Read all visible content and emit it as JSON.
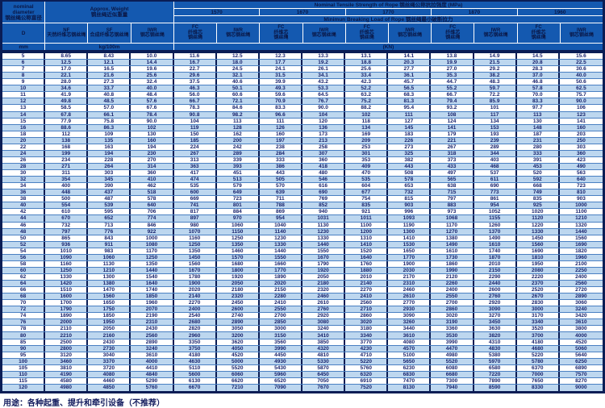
{
  "header": {
    "diameter_title": "nominal\ndiameter\n钢丝绳公称直径",
    "weight_title": "Approx. Weight\n钢丝绳近似重量",
    "tensile_title": "Nominal  Tensile  Strength  of  Rope  钢丝绳公称抗拉强度  (MPa)",
    "breaking_title": "Minimun  Breaking  Load  of  Rope  钢丝绳最小破断拉力",
    "strengths": [
      "1570",
      "1670",
      "1770",
      "1870",
      "1960"
    ],
    "col_d": "D",
    "col_nf": "NF\n天然纤维芯钢丝绳",
    "col_sf": "SF\n合成纤维芯钢丝绳",
    "col_iwr": "IWR\n钢芯钢丝绳",
    "col_fc_core": "FC\n纤维芯\n钢丝绳",
    "col_iwr_core": "IWR\n钢芯钢丝绳",
    "unit_mm": "mm",
    "unit_kg": "kg/100m",
    "unit_kn": "(KN)"
  },
  "columns": [
    "D mm",
    "NF kg/100m",
    "SF kg/100m",
    "IWR kg/100m",
    "FC 1570",
    "IWR 1570",
    "FC 1670",
    "IWR 1670",
    "FC 1770",
    "IWR 1770",
    "FC 1870",
    "IWR 1870",
    "FC 1960",
    "IWR 1960"
  ],
  "rows": [
    [
      "5",
      "8.65",
      "8.43",
      "10.0",
      "11.6",
      "12.5",
      "12.3",
      "13.3",
      "13.1",
      "14.1",
      "13.8",
      "14.9",
      "14.5",
      "15.6"
    ],
    [
      "6",
      "12.5",
      "12.1",
      "14.4",
      "16.7",
      "18.0",
      "17.7",
      "19.2",
      "18.8",
      "20.3",
      "19.9",
      "21.5",
      "20.8",
      "22.5"
    ],
    [
      "7",
      "17.0",
      "16.5",
      "19.6",
      "22.7",
      "24.5",
      "24.1",
      "26.1",
      "25.6",
      "27.7",
      "27.0",
      "29.2",
      "28.3",
      "30.6"
    ],
    [
      "8",
      "22.1",
      "21.6",
      "25.6",
      "29.6",
      "32.1",
      "31.5",
      "34.1",
      "33.4",
      "36.1",
      "35.3",
      "38.2",
      "37.0",
      "40.0"
    ],
    [
      "9",
      "28.0",
      "27.3",
      "32.4",
      "37.5",
      "40.6",
      "39.9",
      "43.2",
      "42.3",
      "45.7",
      "44.7",
      "48.3",
      "46.8",
      "50.6"
    ],
    [
      "10",
      "34.6",
      "33.7",
      "40.0",
      "46.3",
      "50.1",
      "49.3",
      "53.3",
      "52.2",
      "56.5",
      "55.2",
      "59.7",
      "57.8",
      "62.5"
    ],
    [
      "11",
      "41.9",
      "40.8",
      "48.4",
      "56.0",
      "60.6",
      "59.6",
      "64.5",
      "63.2",
      "68.3",
      "66.7",
      "72.2",
      "70.0",
      "75.7"
    ],
    [
      "12",
      "49.8",
      "48.5",
      "57.6",
      "66.7",
      "72.1",
      "70.9",
      "76.7",
      "75.2",
      "81.3",
      "79.4",
      "85.9",
      "83.3",
      "90.0"
    ],
    [
      "13",
      "58.5",
      "57.0",
      "67.6",
      "78.3",
      "84.6",
      "83.3",
      "90.0",
      "88.2",
      "95.4",
      "93.2",
      "101",
      "97.7",
      "106"
    ],
    [
      "14",
      "67.8",
      "66.1",
      "78.4",
      "90.8",
      "98.2",
      "96.6",
      "104",
      "102",
      "111",
      "108",
      "117",
      "113",
      "123"
    ],
    [
      "15",
      "77.9",
      "75.8",
      "90.0",
      "104",
      "113",
      "111",
      "120",
      "118",
      "127",
      "124",
      "134",
      "130",
      "141"
    ],
    [
      "16",
      "88.6",
      "86.3",
      "102",
      "119",
      "128",
      "126",
      "136",
      "134",
      "145",
      "141",
      "153",
      "148",
      "160"
    ],
    [
      "18",
      "112",
      "109",
      "130",
      "150",
      "162",
      "160",
      "173",
      "169",
      "183",
      "179",
      "193",
      "187",
      "203"
    ],
    [
      "20",
      "138",
      "135",
      "160",
      "185",
      "200",
      "197",
      "213",
      "209",
      "226",
      "221",
      "239",
      "231",
      "250"
    ],
    [
      "22",
      "168",
      "163",
      "194",
      "224",
      "242",
      "238",
      "258",
      "253",
      "273",
      "267",
      "289",
      "280",
      "303"
    ],
    [
      "24",
      "199",
      "194",
      "230",
      "267",
      "289",
      "284",
      "307",
      "301",
      "325",
      "318",
      "344",
      "333",
      "360"
    ],
    [
      "26",
      "234",
      "228",
      "270",
      "313",
      "339",
      "333",
      "360",
      "353",
      "382",
      "373",
      "403",
      "391",
      "423"
    ],
    [
      "28",
      "271",
      "264",
      "314",
      "363",
      "393",
      "386",
      "418",
      "409",
      "443",
      "433",
      "468",
      "453",
      "490"
    ],
    [
      "30",
      "311",
      "303",
      "360",
      "417",
      "451",
      "443",
      "480",
      "470",
      "508",
      "497",
      "537",
      "520",
      "563"
    ],
    [
      "32",
      "354",
      "345",
      "410",
      "474",
      "513",
      "505",
      "546",
      "535",
      "578",
      "565",
      "611",
      "592",
      "640"
    ],
    [
      "34",
      "400",
      "390",
      "462",
      "535",
      "579",
      "570",
      "616",
      "604",
      "653",
      "638",
      "690",
      "668",
      "723"
    ],
    [
      "36",
      "448",
      "437",
      "518",
      "600",
      "649",
      "639",
      "690",
      "677",
      "732",
      "715",
      "773",
      "749",
      "810"
    ],
    [
      "38",
      "500",
      "487",
      "578",
      "669",
      "723",
      "711",
      "769",
      "754",
      "815",
      "797",
      "861",
      "835",
      "903"
    ],
    [
      "40",
      "554",
      "539",
      "640",
      "741",
      "801",
      "788",
      "852",
      "835",
      "903",
      "883",
      "954",
      "925",
      "1000"
    ],
    [
      "42",
      "610",
      "595",
      "706",
      "817",
      "884",
      "869",
      "940",
      "921",
      "996",
      "973",
      "1052",
      "1020",
      "1100"
    ],
    [
      "44",
      "670",
      "652",
      "774",
      "897",
      "970",
      "954",
      "1031",
      "1011",
      "1093",
      "1068",
      "1155",
      "1120",
      "1210"
    ],
    [
      "46",
      "732",
      "713",
      "846",
      "980",
      "1060",
      "1040",
      "1130",
      "1100",
      "1190",
      "1170",
      "1260",
      "1220",
      "1320"
    ],
    [
      "48",
      "797",
      "776",
      "922",
      "1070",
      "1150",
      "1140",
      "1230",
      "1200",
      "1300",
      "1270",
      "1370",
      "1330",
      "1440"
    ],
    [
      "50",
      "865",
      "843",
      "1000",
      "1160",
      "1250",
      "1230",
      "1330",
      "1310",
      "1410",
      "1380",
      "1490",
      "1450",
      "1560"
    ],
    [
      "52",
      "936",
      "911",
      "1080",
      "1250",
      "1350",
      "1330",
      "1440",
      "1410",
      "1530",
      "1490",
      "1610",
      "1560",
      "1690"
    ],
    [
      "54",
      "1010",
      "983",
      "1170",
      "1350",
      "1460",
      "1440",
      "1550",
      "1520",
      "1650",
      "1610",
      "1740",
      "1690",
      "1820"
    ],
    [
      "56",
      "1090",
      "1060",
      "1250",
      "1450",
      "1570",
      "1550",
      "1670",
      "1640",
      "1770",
      "1730",
      "1870",
      "1810",
      "1960"
    ],
    [
      "58",
      "1160",
      "1130",
      "1350",
      "1560",
      "1680",
      "1660",
      "1790",
      "1760",
      "1900",
      "1860",
      "2010",
      "1950",
      "2100"
    ],
    [
      "60",
      "1250",
      "1210",
      "1440",
      "1670",
      "1800",
      "1770",
      "1920",
      "1880",
      "2030",
      "1990",
      "2150",
      "2080",
      "2250"
    ],
    [
      "62",
      "1330",
      "1300",
      "1540",
      "1780",
      "1920",
      "1890",
      "2050",
      "2010",
      "2170",
      "2120",
      "2290",
      "2220",
      "2400"
    ],
    [
      "64",
      "1420",
      "1380",
      "1640",
      "1900",
      "2050",
      "2020",
      "2180",
      "2140",
      "2310",
      "2260",
      "2440",
      "2370",
      "2560"
    ],
    [
      "66",
      "1510",
      "1470",
      "1740",
      "2020",
      "2180",
      "2150",
      "2320",
      "2270",
      "2460",
      "2400",
      "2600",
      "2520",
      "2720"
    ],
    [
      "68",
      "1600",
      "1560",
      "1850",
      "2140",
      "2320",
      "2280",
      "2460",
      "2410",
      "2610",
      "2550",
      "2760",
      "2670",
      "2890"
    ],
    [
      "70",
      "1700",
      "1650",
      "1960",
      "2270",
      "2450",
      "2410",
      "2610",
      "2560",
      "2770",
      "2700",
      "2920",
      "2830",
      "3060"
    ],
    [
      "72",
      "1790",
      "1750",
      "2070",
      "2400",
      "2600",
      "2550",
      "2760",
      "2710",
      "2930",
      "2860",
      "3090",
      "3000",
      "3240"
    ],
    [
      "74",
      "1890",
      "1850",
      "2190",
      "2540",
      "2740",
      "2700",
      "2920",
      "2860",
      "3090",
      "3020",
      "3270",
      "3170",
      "3420"
    ],
    [
      "76",
      "2000",
      "1950",
      "2310",
      "2680",
      "2890",
      "2850",
      "3080",
      "3020",
      "3260",
      "3190",
      "3450",
      "3340",
      "3610"
    ],
    [
      "78",
      "2110",
      "2050",
      "2430",
      "2820",
      "3050",
      "3000",
      "3240",
      "3180",
      "3440",
      "3360",
      "3630",
      "3520",
      "3800"
    ],
    [
      "80",
      "2210",
      "2160",
      "2560",
      "2960",
      "3200",
      "3150",
      "3410",
      "3340",
      "3610",
      "3530",
      "3820",
      "3700",
      "4000"
    ],
    [
      "85",
      "2500",
      "2430",
      "2890",
      "3350",
      "3620",
      "3560",
      "3850",
      "3770",
      "4080",
      "3990",
      "4310",
      "4180",
      "4520"
    ],
    [
      "90",
      "2800",
      "2730",
      "3240",
      "3750",
      "4050",
      "3990",
      "4320",
      "4230",
      "4570",
      "4470",
      "4830",
      "4680",
      "5060"
    ],
    [
      "95",
      "3120",
      "3040",
      "3610",
      "4180",
      "4520",
      "4450",
      "4810",
      "4710",
      "5100",
      "4980",
      "5380",
      "5220",
      "5640"
    ],
    [
      "100",
      "3460",
      "3370",
      "4000",
      "4630",
      "5000",
      "4930",
      "5330",
      "5220",
      "5650",
      "5520",
      "5970",
      "5780",
      "6250"
    ],
    [
      "105",
      "3810",
      "3720",
      "4410",
      "5110",
      "5520",
      "5430",
      "5870",
      "5760",
      "6230",
      "6080",
      "6580",
      "6370",
      "6890"
    ],
    [
      "110",
      "4190",
      "4080",
      "4840",
      "5600",
      "6060",
      "5960",
      "6450",
      "6320",
      "6830",
      "6680",
      "7220",
      "7000",
      "7570"
    ],
    [
      "115",
      "4580",
      "4460",
      "5290",
      "6130",
      "6620",
      "6520",
      "7050",
      "6910",
      "7470",
      "7300",
      "7890",
      "7650",
      "8270"
    ],
    [
      "120",
      "4980",
      "4850",
      "5760",
      "6670",
      "7210",
      "7090",
      "7670",
      "7520",
      "8130",
      "7940",
      "8590",
      "8330",
      "9000"
    ]
  ],
  "footer": {
    "usage": "用途：各种起重、提升和牵引设备（不推荐）"
  },
  "colors": {
    "header_blue": "#1459b0",
    "border_navy": "#0a1d55",
    "stripe_blue": "#bdd7ef",
    "text_navy": "#141f6a"
  }
}
